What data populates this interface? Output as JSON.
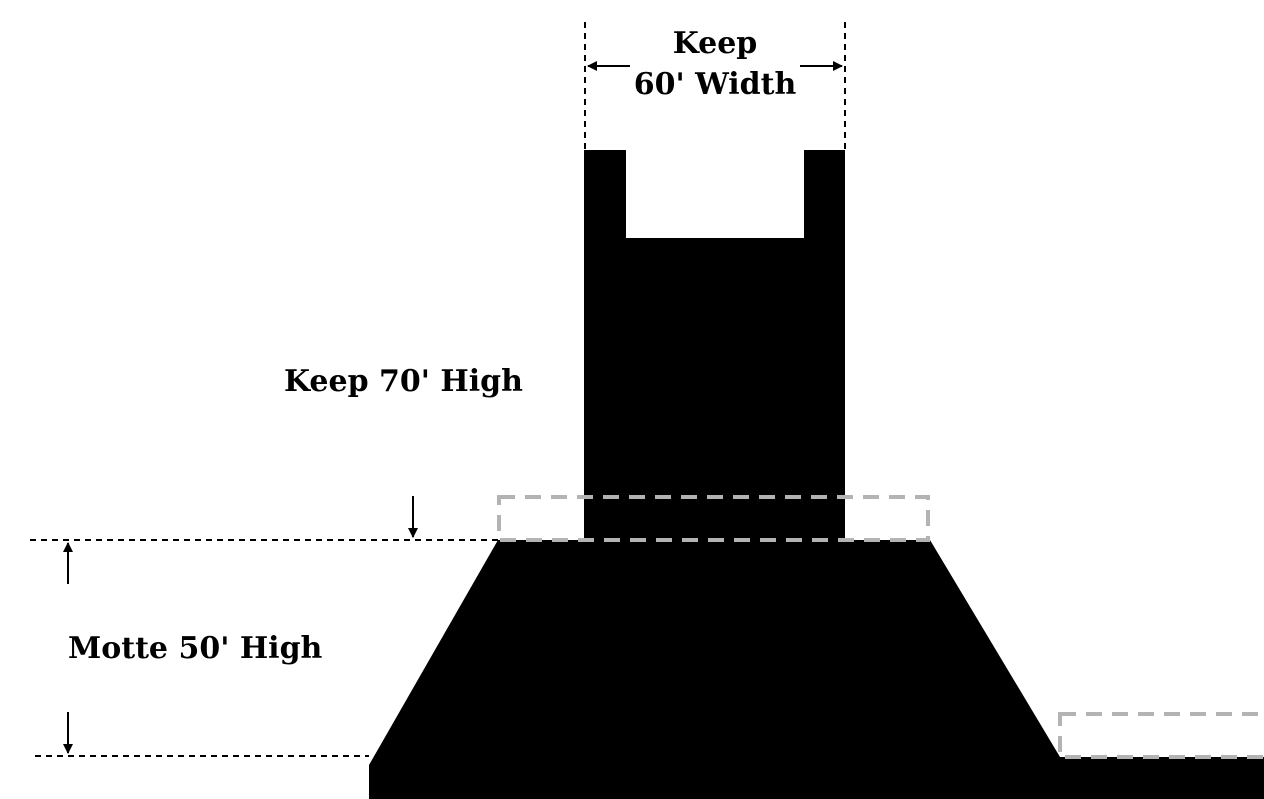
{
  "labels": {
    "keep_width_line1": "Keep",
    "keep_width_line2": "60' Width",
    "keep_height": "Keep 70' High",
    "motte_height": "Motte 50' High"
  },
  "colors": {
    "fill": "#000000",
    "dimension_line": "#000000",
    "ghost_outline": "#b3b3b3",
    "background": "#ffffff"
  }
}
